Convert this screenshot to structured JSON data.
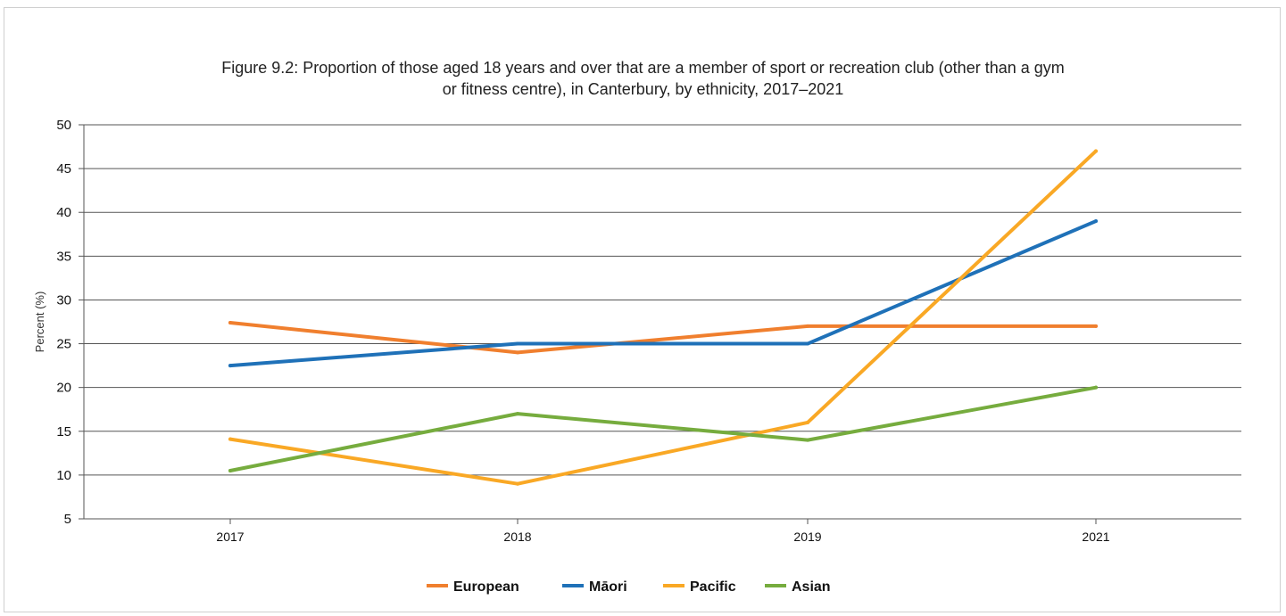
{
  "chart_data": {
    "type": "line",
    "title": "Figure 9.2: Proportion of those aged 18 years and over that are a member of sport or recreation club (other than a gym or fitness centre), in Canterbury, by ethnicity, 2017–2021",
    "title_lines": [
      "Figure 9.2: Proportion of those aged 18 years and over that are a member of sport or recreation club (other than a gym",
      "or fitness centre), in Canterbury, by ethnicity, 2017–2021"
    ],
    "xlabel": "",
    "ylabel": "Percent (%)",
    "categories": [
      "2017",
      "2018",
      "2019",
      "2021"
    ],
    "ylim": [
      5,
      50
    ],
    "yticks": [
      5,
      10,
      15,
      20,
      25,
      30,
      35,
      40,
      45,
      50
    ],
    "grid": true,
    "legend_position": "bottom",
    "series": [
      {
        "name": "European",
        "color": "#F07F2E",
        "values": [
          27.4,
          24.0,
          27.0,
          27.0
        ]
      },
      {
        "name": "Māori",
        "color": "#1F71B8",
        "values": [
          22.5,
          25.0,
          25.0,
          39.0
        ]
      },
      {
        "name": "Pacific",
        "color": "#F9A825",
        "values": [
          14.1,
          9.0,
          16.0,
          47.0
        ]
      },
      {
        "name": "Asian",
        "color": "#76AC3E",
        "values": [
          10.5,
          17.0,
          14.0,
          20.0
        ]
      }
    ]
  }
}
